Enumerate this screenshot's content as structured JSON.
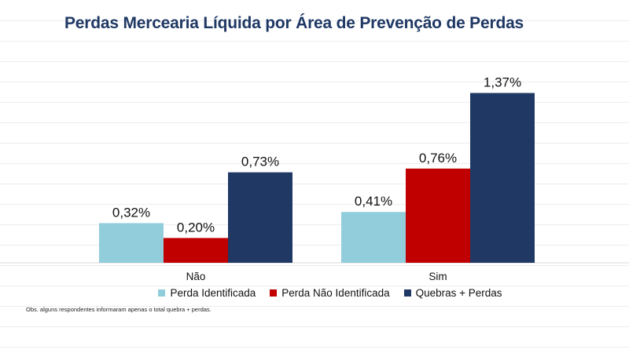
{
  "chart_data": {
    "type": "bar",
    "title": "Perdas Mercearia Líquida por Área de Prevenção de Perdas",
    "categories": [
      "Não",
      "Sim"
    ],
    "series": [
      {
        "name": "Perda Identificada",
        "color": "#92cddc",
        "values": [
          0.32,
          0.41
        ],
        "labels": [
          "0,32%",
          "0,41%"
        ]
      },
      {
        "name": "Perda Não Identificada",
        "color": "#c00000",
        "values": [
          0.2,
          0.76
        ],
        "labels": [
          "0,20%",
          "0,76%"
        ]
      },
      {
        "name": "Quebras + Perdas",
        "color": "#1f3864",
        "values": [
          0.73,
          1.37
        ],
        "labels": [
          "0,73%",
          "1,37%"
        ]
      }
    ],
    "ylim": [
      0,
      1.5
    ],
    "xlabel": "",
    "ylabel": "",
    "grid": false,
    "legend_position": "bottom"
  },
  "note": "Obs. alguns respondentes informaram apenas  o total quebra + perdas."
}
